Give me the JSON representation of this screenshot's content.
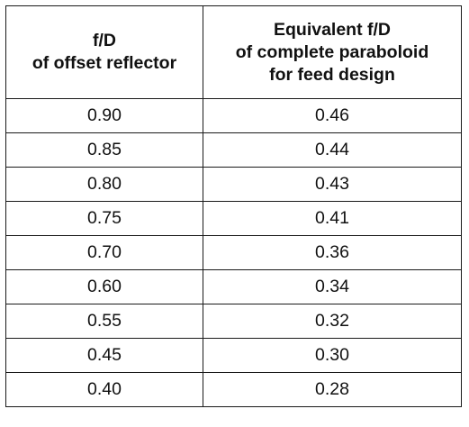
{
  "table": {
    "headers": [
      {
        "lines": [
          "f/D",
          "of offset reflector"
        ]
      },
      {
        "lines": [
          "Equivalent f/D",
          "of complete paraboloid",
          "for feed design"
        ]
      }
    ],
    "rows": [
      [
        "0.90",
        "0.46"
      ],
      [
        "0.85",
        "0.44"
      ],
      [
        "0.80",
        "0.43"
      ],
      [
        "0.75",
        "0.41"
      ],
      [
        "0.70",
        "0.36"
      ],
      [
        "0.60",
        "0.34"
      ],
      [
        "0.55",
        "0.32"
      ],
      [
        "0.45",
        "0.30"
      ],
      [
        "0.40",
        "0.28"
      ]
    ]
  }
}
